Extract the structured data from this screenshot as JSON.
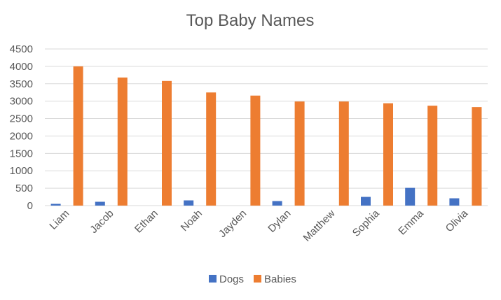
{
  "chart_data": {
    "type": "bar",
    "title": "Top Baby Names",
    "categories": [
      "Liam",
      "Jacob",
      "Ethan",
      "Noah",
      "Jayden",
      "Dylan",
      "Matthew",
      "Sophia",
      "Emma",
      "Olivia"
    ],
    "series": [
      {
        "name": "Dogs",
        "color": "#4472C4",
        "values": [
          50,
          110,
          0,
          150,
          0,
          130,
          0,
          250,
          510,
          210
        ]
      },
      {
        "name": "Babies",
        "color": "#ED7D31",
        "values": [
          4000,
          3680,
          3580,
          3250,
          3160,
          2990,
          2990,
          2940,
          2870,
          2830
        ]
      }
    ],
    "ylim": [
      0,
      4500
    ],
    "yticks": [
      "0",
      "500",
      "1000",
      "1500",
      "2000",
      "2500",
      "3000",
      "3500",
      "4000",
      "4500"
    ],
    "grid": true,
    "legend_position": "bottom",
    "gridline_color": "#D9D9D9",
    "text_color": "#595959"
  }
}
